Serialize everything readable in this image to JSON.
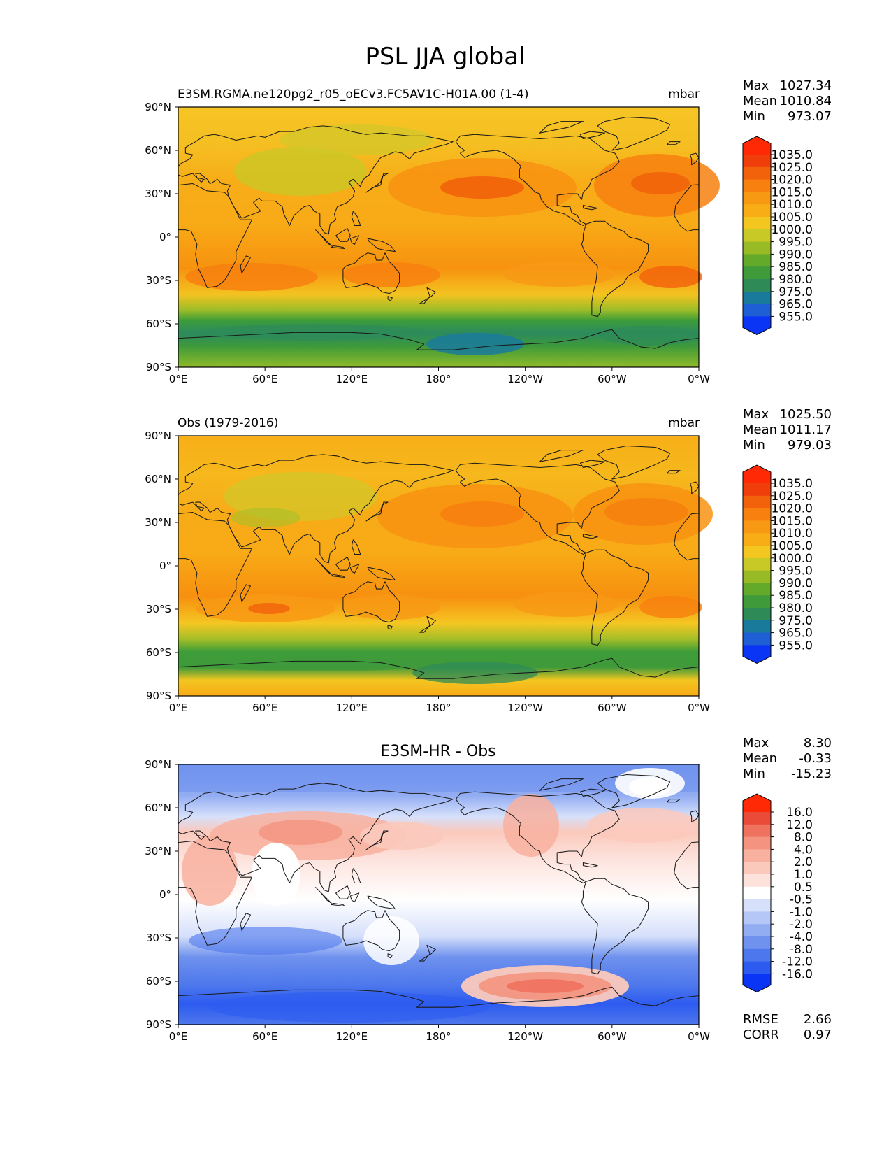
{
  "title": "PSL JJA global",
  "lat_ticks": [
    "90°N",
    "60°N",
    "30°N",
    "0°",
    "30°S",
    "60°S",
    "90°S"
  ],
  "lon_ticks": [
    "0°E",
    "60°E",
    "120°E",
    "180°",
    "120°W",
    "60°W",
    "0°W"
  ],
  "stat_labels": {
    "max": "Max",
    "mean": "Mean",
    "min": "Min",
    "rmse": "RMSE",
    "corr": "CORR"
  },
  "colors": {
    "psl_levels": [
      "#0a35f5",
      "#1f5fd6",
      "#1a7a9c",
      "#2e8b57",
      "#3f9a3a",
      "#63a92a",
      "#98bb25",
      "#c8c826",
      "#f3c620",
      "#f8ad16",
      "#f89914",
      "#f7800f",
      "#f2620b",
      "#f03e0a",
      "#ff2a05"
    ],
    "diff_levels": [
      "#0a35f5",
      "#2d5bf0",
      "#4d77ec",
      "#6f92ee",
      "#93adf3",
      "#b5c7f6",
      "#d6e0fb",
      "#ffffff",
      "#fde2dc",
      "#fbc9bc",
      "#f8b09f",
      "#f49380",
      "#ef725f",
      "#ea4b38",
      "#ff2a05"
    ]
  },
  "panels": [
    {
      "title": "E3SM.RGMA.ne120pg2_r05_oECv3.FC5AV1C-H01A.00 (1-4)",
      "units": "mbar",
      "stats": {
        "max": "1027.34",
        "mean": "1010.84",
        "min": "973.07"
      },
      "colorbar_labels": [
        "1035.0",
        "1025.0",
        "1020.0",
        "1015.0",
        "1010.0",
        "1005.0",
        "1000.0",
        "995.0",
        "990.0",
        "985.0",
        "980.0",
        "975.0",
        "965.0",
        "955.0"
      ]
    },
    {
      "title": "Obs (1979-2016)",
      "units": "mbar",
      "stats": {
        "max": "1025.50",
        "mean": "1011.17",
        "min": "979.03"
      },
      "colorbar_labels": [
        "1035.0",
        "1025.0",
        "1020.0",
        "1015.0",
        "1010.0",
        "1005.0",
        "1000.0",
        "995.0",
        "990.0",
        "985.0",
        "980.0",
        "975.0",
        "965.0",
        "955.0"
      ]
    },
    {
      "title": "E3SM-HR - Obs",
      "units": "",
      "stats": {
        "max": "8.30",
        "mean": "-0.33",
        "min": "-15.23",
        "rmse": "2.66",
        "corr": "0.97"
      },
      "colorbar_labels": [
        "16.0",
        "12.0",
        "8.0",
        "4.0",
        "2.0",
        "1.0",
        "0.5",
        "-0.5",
        "-1.0",
        "-2.0",
        "-4.0",
        "-8.0",
        "-12.0",
        "-16.0"
      ]
    }
  ]
}
